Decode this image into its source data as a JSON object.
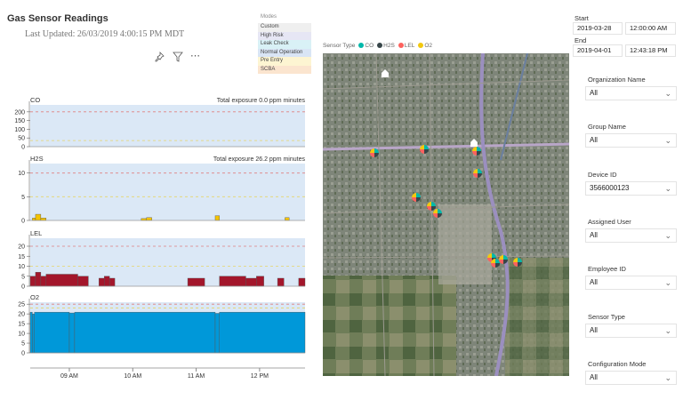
{
  "header": {
    "title": "Gas Sensor Readings",
    "last_updated": "Last Updated: 26/03/2019 4:00:15 PM MDT"
  },
  "toolbar": {
    "icons": [
      "pin-icon",
      "filter-icon",
      "more-options-icon"
    ],
    "more": "⋯"
  },
  "modes": {
    "title": "Modes",
    "items": [
      {
        "label": "Custom",
        "color": "#efefef"
      },
      {
        "label": "High Risk",
        "color": "#e6e6f4"
      },
      {
        "label": "Leak Check",
        "color": "#d9f1f6"
      },
      {
        "label": "Normal Operation",
        "color": "#d9e5f5"
      },
      {
        "label": "Pre Entry",
        "color": "#fdf5d2"
      },
      {
        "label": "SCBA",
        "color": "#fbe5cf"
      }
    ]
  },
  "chart_data": {
    "type": "area",
    "x_range": [
      "08:23",
      "12:43"
    ],
    "x_ticks": [
      "09 AM",
      "10 AM",
      "11 AM",
      "12 PM"
    ],
    "x_tick_times": [
      "09:00",
      "10:00",
      "11:00",
      "12:00"
    ],
    "panels": [
      {
        "name": "CO",
        "exposure": "Total exposure 0.0 ppm minutes",
        "ylim": [
          0,
          240
        ],
        "yticks": [
          0,
          50,
          100,
          150,
          200
        ],
        "alarm_high": 200,
        "alarm_low": 35,
        "color": "#e0b400",
        "segments": []
      },
      {
        "name": "H2S",
        "exposure": "Total exposure 26.2 ppm minutes",
        "ylim": [
          0,
          12
        ],
        "yticks": [
          0,
          5,
          10
        ],
        "alarm_high": 10,
        "alarm_low": 5,
        "color": "#f5c400",
        "segments": [
          [
            "08:25",
            "08:28",
            0.5
          ],
          [
            "08:28",
            "08:33",
            1.3
          ],
          [
            "08:33",
            "08:38",
            0.5
          ],
          [
            "10:08",
            "10:13",
            0.4
          ],
          [
            "10:13",
            "10:18",
            0.6
          ],
          [
            "11:18",
            "11:22",
            1.0
          ],
          [
            "12:24",
            "12:28",
            0.6
          ]
        ]
      },
      {
        "name": "LEL",
        "exposure": "",
        "ylim": [
          0,
          24
        ],
        "yticks": [
          0,
          5,
          10,
          15,
          20
        ],
        "alarm_high": 20,
        "alarm_low": 10,
        "color": "#a3162b",
        "segments": [
          [
            "08:23",
            "08:28",
            5
          ],
          [
            "08:28",
            "08:33",
            7
          ],
          [
            "08:33",
            "08:38",
            5
          ],
          [
            "08:38",
            "09:08",
            6
          ],
          [
            "09:08",
            "09:18",
            5
          ],
          [
            "09:28",
            "09:33",
            4
          ],
          [
            "09:33",
            "09:38",
            5
          ],
          [
            "09:38",
            "09:43",
            4
          ],
          [
            "10:52",
            "11:08",
            4
          ],
          [
            "11:22",
            "11:47",
            5
          ],
          [
            "11:47",
            "11:57",
            4
          ],
          [
            "11:57",
            "12:04",
            5
          ],
          [
            "12:17",
            "12:23",
            4
          ],
          [
            "12:37",
            "12:43",
            4
          ]
        ]
      },
      {
        "name": "O2",
        "exposure": "",
        "ylim": [
          0,
          26
        ],
        "yticks": [
          0,
          5,
          10,
          15,
          20,
          25
        ],
        "alarm_high": 25,
        "alarm_low": 23,
        "color": "#0098d9",
        "segments": [
          [
            "08:23",
            "08:25",
            20.9
          ],
          [
            "08:25",
            "08:27",
            20.0
          ],
          [
            "08:27",
            "09:00",
            20.9
          ],
          [
            "09:00",
            "09:05",
            20.5
          ],
          [
            "09:05",
            "11:18",
            20.9
          ],
          [
            "11:18",
            "11:22",
            20.3
          ],
          [
            "11:22",
            "12:43",
            20.9
          ]
        ]
      }
    ]
  },
  "map": {
    "legend_title": "Sensor Type",
    "legend": [
      {
        "label": "CO",
        "color": "#01b8aa"
      },
      {
        "label": "H2S",
        "color": "#374649"
      },
      {
        "label": "LEL",
        "color": "#fd625e"
      },
      {
        "label": "O2",
        "color": "#f2c80f"
      }
    ]
  },
  "daterange": {
    "start_label": "Start",
    "start_date": "2019-03-28",
    "start_time": "12:00:00 AM",
    "end_label": "End",
    "end_date": "2019-04-01",
    "end_time": "12:43:18 PM"
  },
  "filters": [
    {
      "label": "Organization Name",
      "value": "All"
    },
    {
      "label": "Group Name",
      "value": "All"
    },
    {
      "label": "Device ID",
      "value": "3566000123"
    },
    {
      "label": "Assigned User",
      "value": "All"
    },
    {
      "label": "Employee ID",
      "value": "All"
    },
    {
      "label": "Sensor Type",
      "value": "All"
    },
    {
      "label": "Configuration Mode",
      "value": "All"
    }
  ]
}
